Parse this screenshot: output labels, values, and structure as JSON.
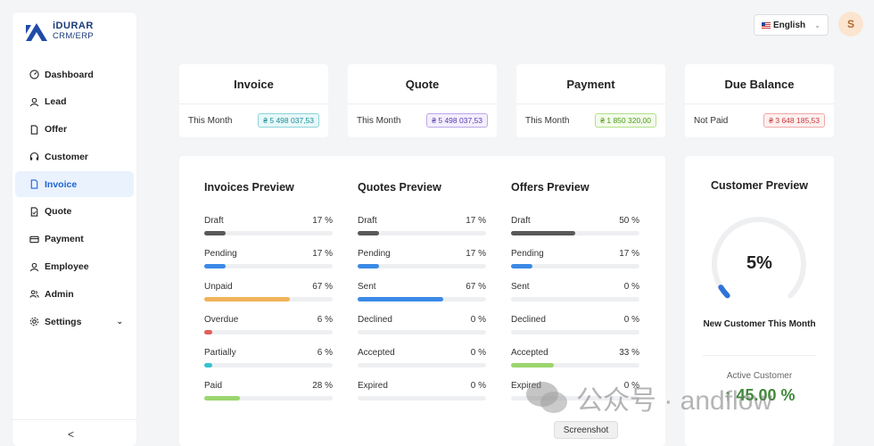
{
  "app": {
    "logo_title": "iDURAR",
    "logo_sub": "CRM/ERP"
  },
  "sidebar": {
    "items": [
      {
        "label": "Dashboard",
        "icon": "dashboard-icon"
      },
      {
        "label": "Lead",
        "icon": "user-icon"
      },
      {
        "label": "Offer",
        "icon": "file-icon"
      },
      {
        "label": "Customer",
        "icon": "headset-icon"
      },
      {
        "label": "Invoice",
        "icon": "file-icon",
        "active": true
      },
      {
        "label": "Quote",
        "icon": "file-check-icon"
      },
      {
        "label": "Payment",
        "icon": "credit-card-icon"
      },
      {
        "label": "Employee",
        "icon": "user-icon"
      },
      {
        "label": "Admin",
        "icon": "team-icon"
      },
      {
        "label": "Settings",
        "icon": "gear-icon",
        "has_submenu": true
      }
    ],
    "collapse_label": "<"
  },
  "header": {
    "language": "English",
    "avatar_initial": "S"
  },
  "summary": [
    {
      "title": "Invoice",
      "label": "This Month",
      "amount": "₴ 5 498 037,53",
      "color": "cyan"
    },
    {
      "title": "Quote",
      "label": "This Month",
      "amount": "₴ 5 498 037,53",
      "color": "purple"
    },
    {
      "title": "Payment",
      "label": "This Month",
      "amount": "₴ 1 850 320,00",
      "color": "green"
    },
    {
      "title": "Due Balance",
      "label": "Not Paid",
      "amount": "₴ 3 648 185,53",
      "color": "red"
    }
  ],
  "previews": [
    {
      "title": "Invoices Preview",
      "stats": [
        {
          "label": "Draft",
          "value": "17 %",
          "pct": 17,
          "color": "#595959"
        },
        {
          "label": "Pending",
          "value": "17 %",
          "pct": 17,
          "color": "#3b8ae6"
        },
        {
          "label": "Unpaid",
          "value": "67 %",
          "pct": 67,
          "color": "#f0b35a"
        },
        {
          "label": "Overdue",
          "value": "6 %",
          "pct": 6,
          "color": "#e0605c"
        },
        {
          "label": "Partially",
          "value": "6 %",
          "pct": 6,
          "color": "#36c3cf"
        },
        {
          "label": "Paid",
          "value": "28 %",
          "pct": 28,
          "color": "#9bd56e"
        }
      ]
    },
    {
      "title": "Quotes Preview",
      "stats": [
        {
          "label": "Draft",
          "value": "17 %",
          "pct": 17,
          "color": "#595959"
        },
        {
          "label": "Pending",
          "value": "17 %",
          "pct": 17,
          "color": "#3b8ae6"
        },
        {
          "label": "Sent",
          "value": "67 %",
          "pct": 67,
          "color": "#3b8ae6"
        },
        {
          "label": "Declined",
          "value": "0 %",
          "pct": 0,
          "color": "#e0605c"
        },
        {
          "label": "Accepted",
          "value": "0 %",
          "pct": 0,
          "color": "#9bd56e"
        },
        {
          "label": "Expired",
          "value": "0 %",
          "pct": 0,
          "color": "#e0605c"
        }
      ]
    },
    {
      "title": "Offers Preview",
      "stats": [
        {
          "label": "Draft",
          "value": "50 %",
          "pct": 50,
          "color": "#595959"
        },
        {
          "label": "Pending",
          "value": "17 %",
          "pct": 17,
          "color": "#3b8ae6"
        },
        {
          "label": "Sent",
          "value": "0 %",
          "pct": 0,
          "color": "#3b8ae6"
        },
        {
          "label": "Declined",
          "value": "0 %",
          "pct": 0,
          "color": "#e0605c"
        },
        {
          "label": "Accepted",
          "value": "33 %",
          "pct": 33,
          "color": "#9bd56e"
        },
        {
          "label": "Expired",
          "value": "0 %",
          "pct": 0,
          "color": "#e0605c"
        }
      ]
    }
  ],
  "customer": {
    "title": "Customer Preview",
    "gauge_value": "5%",
    "gauge_pct": 5,
    "gauge_color": "#2f72d8",
    "new_label": "New Customer This Month",
    "active_label": "Active Customer",
    "active_value": "45.00 %"
  },
  "overlay": {
    "tooltip": "Screenshot",
    "watermark": "公众号 · andflow"
  }
}
